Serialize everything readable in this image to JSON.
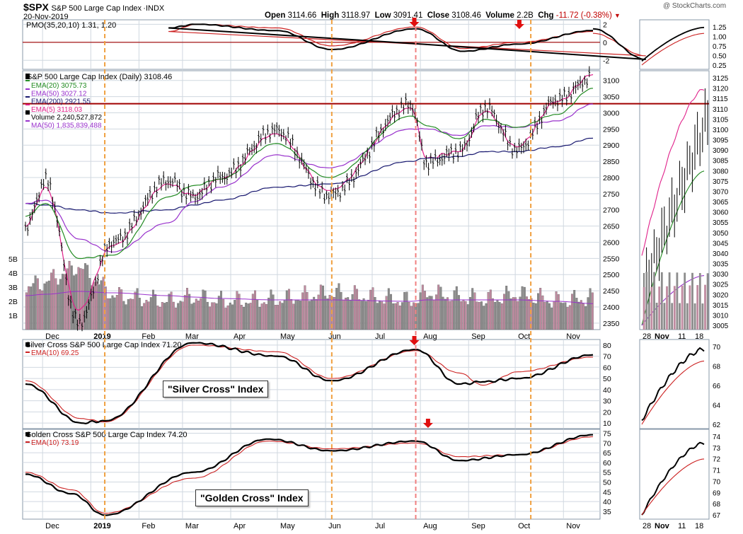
{
  "header": {
    "symbol": "$SPX",
    "name": "S&P 500 Large Cap Index",
    "exchange": "INDX",
    "date": "20-Nov-2019",
    "open_label": "Open",
    "open": "3114.66",
    "high_label": "High",
    "high": "3118.97",
    "low_label": "Low",
    "low": "3091.41",
    "close_label": "Close",
    "close": "3108.46",
    "volume_label": "Volume",
    "volume": "2.2B",
    "chg_label": "Chg",
    "chg": "-11.72 (-0.38%)",
    "watermark": "@ StockCharts.com"
  },
  "colors": {
    "price": "#000000",
    "ema20": "#228b22",
    "ema50": "#9932cc",
    "ema200": "#191970",
    "ema5": "#e0218a",
    "volume_up": "#c08aa0",
    "volume_down": "#8c8c8c",
    "support_line": "#a00000",
    "vline_orange": "#f0a040",
    "vline_red": "#f08080",
    "arrow": "#e01010",
    "signal": "#cc2222",
    "grid": "#d0d8e0"
  },
  "chart_data": [
    {
      "panel": "pmo",
      "type": "line",
      "title": "PMO(35,20,10) 1.31, 1.20",
      "y_ticks": [
        "2",
        "0",
        "-2"
      ],
      "ylim": [
        -3,
        2.5
      ],
      "x": [
        "2019-11-20",
        "2019-12-24",
        "2019-02-20",
        "2019-03-10",
        "2019-05-01",
        "2019-06-05",
        "2019-07-29",
        "2019-08-28",
        "2019-10-03",
        "2019-11-20"
      ],
      "series": [
        {
          "name": "PMO",
          "values": [
            1.5,
            -1.9,
            1.6,
            2.0,
            1.3,
            -0.8,
            1.5,
            -1.0,
            -0.2,
            1.31
          ]
        },
        {
          "name": "Signal",
          "values": [
            1.0,
            -1.5,
            1.2,
            2.0,
            1.6,
            -0.4,
            1.7,
            -0.7,
            0.0,
            1.2
          ]
        }
      ]
    },
    {
      "panel": "price",
      "type": "line",
      "title": "S&P 500 Large Cap Index (Daily) 3108.46",
      "legend": [
        {
          "text": "EMA(20) 3075.73"
        },
        {
          "text": "EMA(50) 3027.12"
        },
        {
          "text": "EMA(200) 2921.55"
        },
        {
          "text": "EMA(5) 3118.03"
        },
        {
          "text": "Volume 2,240,527,872"
        },
        {
          "text": "MA(50) 1,835,839,488"
        }
      ],
      "y_ticks": [
        "3100",
        "3050",
        "3000",
        "2950",
        "2900",
        "2850",
        "2800",
        "2750",
        "2700",
        "2650",
        "2600",
        "2550",
        "2500",
        "2450",
        "2400",
        "2350"
      ],
      "volume_ticks": [
        "5B",
        "4B",
        "3B",
        "2B",
        "1B"
      ],
      "ylim": [
        2330,
        3130
      ],
      "support_level": 3028,
      "x": [
        "2018-11-20",
        "2018-12-03",
        "2018-12-24",
        "2019-01-15",
        "2019-02-20",
        "2019-03-08",
        "2019-03-25",
        "2019-04-30",
        "2019-06-03",
        "2019-07-26",
        "2019-08-05",
        "2019-08-26",
        "2019-09-12",
        "2019-10-02",
        "2019-10-28",
        "2019-11-20"
      ],
      "series": [
        {
          "name": "Price",
          "values": [
            2645,
            2790,
            2350,
            2600,
            2790,
            2740,
            2800,
            2945,
            2745,
            3025,
            2845,
            2880,
            3015,
            2885,
            3040,
            3108.46
          ]
        },
        {
          "name": "EMA(20)",
          "values": [
            2680,
            2720,
            2550,
            2560,
            2740,
            2775,
            2795,
            2905,
            2800,
            2990,
            2960,
            2920,
            2980,
            2955,
            2995,
            3075.73
          ]
        },
        {
          "name": "EMA(50)",
          "values": [
            2720,
            2730,
            2610,
            2570,
            2660,
            2725,
            2770,
            2870,
            2830,
            2950,
            2950,
            2930,
            2960,
            2955,
            2975,
            3027.12
          ]
        },
        {
          "name": "EMA(200)",
          "values": [
            2720,
            2715,
            2700,
            2690,
            2700,
            2715,
            2730,
            2770,
            2780,
            2850,
            2860,
            2865,
            2880,
            2880,
            2895,
            2921.55
          ]
        },
        {
          "name": "EMA(5)",
          "values": [
            2650,
            2770,
            2390,
            2590,
            2780,
            2745,
            2795,
            2935,
            2760,
            3015,
            2860,
            2880,
            3005,
            2895,
            3035,
            3118.03
          ]
        }
      ],
      "volume_billions": [
        3.0,
        3.4,
        4.5,
        2.4,
        2.0,
        2.3,
        2.0,
        2.1,
        2.6,
        2.0,
        2.6,
        2.3,
        2.1,
        2.5,
        2.0,
        2.24
      ],
      "volume_ma_billions": [
        2.4,
        2.5,
        2.7,
        2.6,
        2.4,
        2.3,
        2.2,
        2.1,
        2.1,
        2.0,
        2.1,
        2.1,
        2.1,
        2.1,
        2.0,
        1.84
      ]
    },
    {
      "panel": "silver_cross",
      "type": "line",
      "title": "Silver Cross S&P 500 Large Cap Index 71.20",
      "legend": [
        {
          "text": "EMA(10) 69.25"
        }
      ],
      "callout": "\"Silver Cross\" Index",
      "y_ticks": [
        "80",
        "70",
        "60",
        "50",
        "40",
        "30",
        "20",
        "10"
      ],
      "ylim": [
        5,
        85
      ],
      "x": [
        "2018-11-20",
        "2018-12-26",
        "2019-01-10",
        "2019-03-08",
        "2019-05-01",
        "2019-06-05",
        "2019-07-29",
        "2019-08-26",
        "2019-09-10",
        "2019-10-03",
        "2019-11-20"
      ],
      "series": [
        {
          "name": "Silver Cross",
          "values": [
            45,
            10,
            12,
            82,
            70,
            48,
            76,
            45,
            47,
            50,
            71.2
          ]
        },
        {
          "name": "EMA(10)",
          "values": [
            48,
            14,
            11,
            80,
            74,
            50,
            75,
            55,
            44,
            56,
            69.25
          ]
        }
      ]
    },
    {
      "panel": "golden_cross",
      "type": "line",
      "title": "Golden Cross S&P 500 Large Cap Index 74.20",
      "legend": [
        {
          "text": "EMA(10) 73.19"
        }
      ],
      "callout": "\"Golden Cross\" Index",
      "y_ticks": [
        "75",
        "70",
        "65",
        "60",
        "55",
        "50",
        "45",
        "40",
        "35"
      ],
      "ylim": [
        31,
        77
      ],
      "x": [
        "2018-11-20",
        "2018-12-20",
        "2019-01-10",
        "2019-03-08",
        "2019-04-25",
        "2019-06-05",
        "2019-07-29",
        "2019-08-26",
        "2019-10-03",
        "2019-11-20"
      ],
      "series": [
        {
          "name": "Golden Cross",
          "values": [
            54,
            44,
            33,
            55,
            72,
            66,
            71,
            61,
            64,
            74.2
          ]
        },
        {
          "name": "EMA(10)",
          "values": [
            55,
            46,
            34,
            52,
            71,
            67,
            70,
            63,
            64,
            73.19
          ]
        }
      ]
    }
  ],
  "x_axis": {
    "months": [
      "Dec",
      "2019",
      "Feb",
      "Mar",
      "Apr",
      "May",
      "Jun",
      "Jul",
      "Aug",
      "Sep",
      "Oct",
      "Nov"
    ],
    "zoom_ticks": [
      "28",
      "Nov",
      "11",
      "18"
    ]
  },
  "zoom": {
    "pmo_ticks": [
      "1.25",
      "1.00",
      "0.75",
      "0.50",
      "0.25"
    ],
    "price_ticks": [
      "3125",
      "3120",
      "3115",
      "3110",
      "3105",
      "3100",
      "3095",
      "3090",
      "3085",
      "3080",
      "3075",
      "3070",
      "3065",
      "3060",
      "3055",
      "3050",
      "3045",
      "3040",
      "3035",
      "3030",
      "3025",
      "3020",
      "3015",
      "3010",
      "3005"
    ],
    "silver_ticks": [
      "70",
      "68",
      "66",
      "64",
      "62"
    ],
    "golden_ticks": [
      "74",
      "73",
      "72",
      "71",
      "70",
      "69",
      "68",
      "67"
    ]
  }
}
